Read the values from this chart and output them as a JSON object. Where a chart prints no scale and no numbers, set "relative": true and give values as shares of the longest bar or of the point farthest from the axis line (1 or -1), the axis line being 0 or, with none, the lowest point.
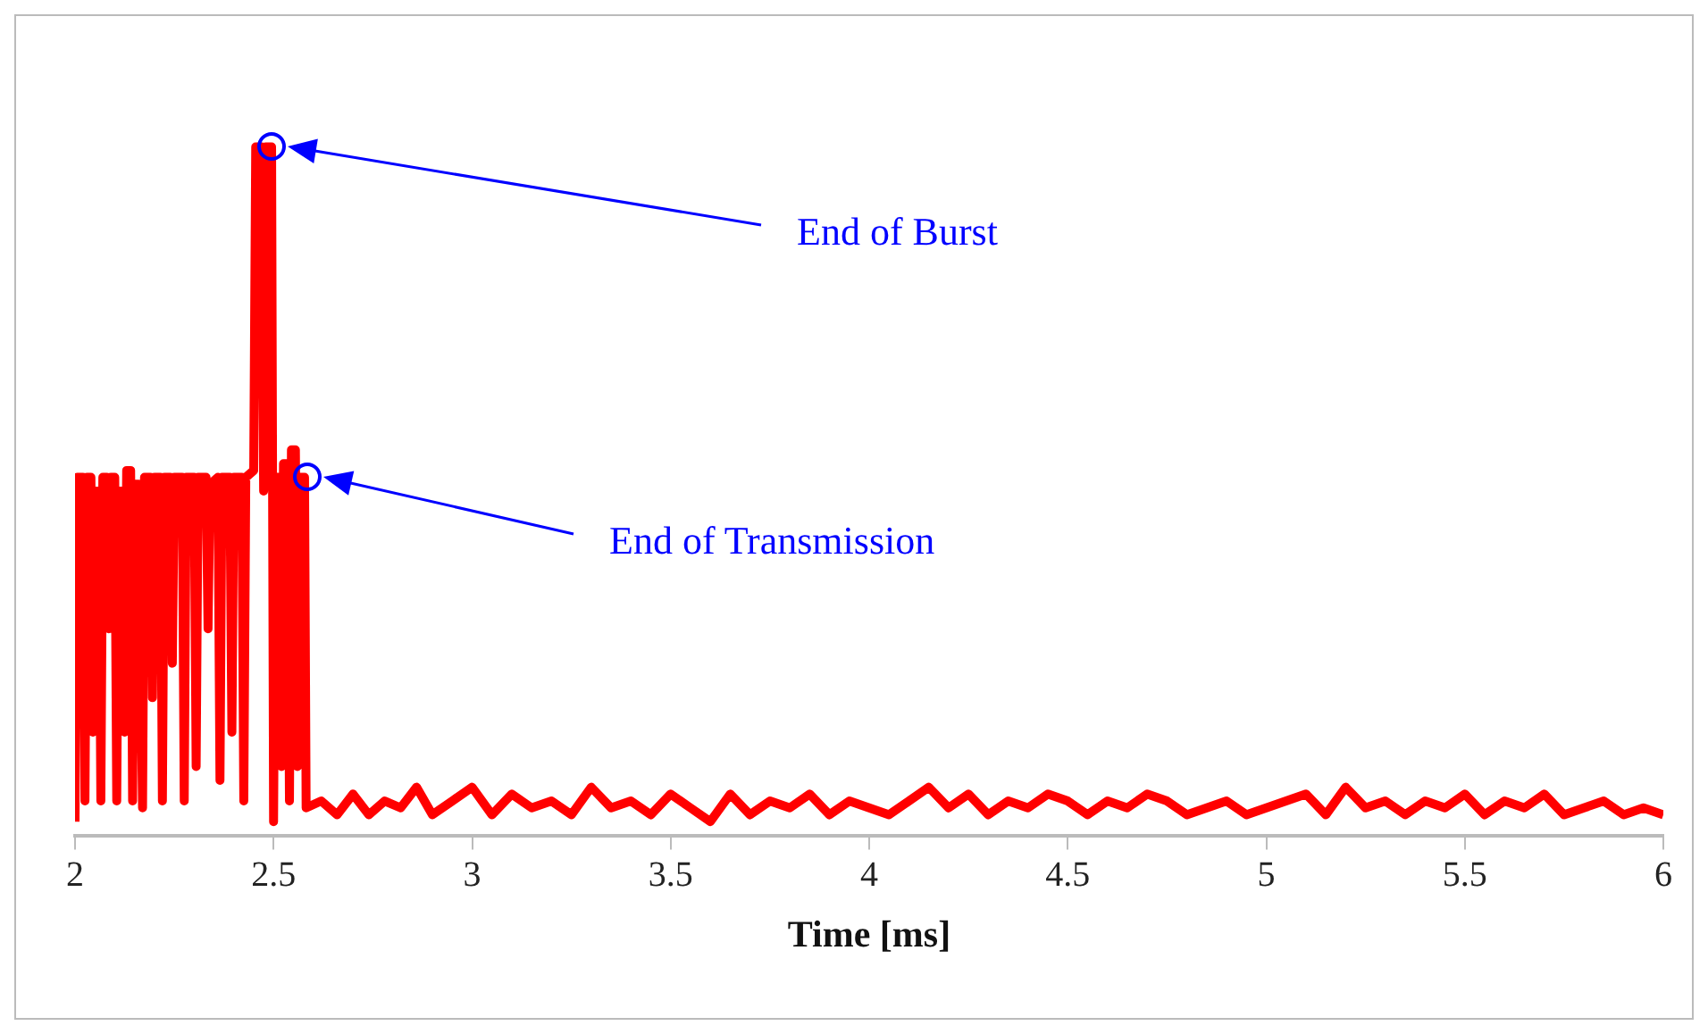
{
  "chart_data": {
    "type": "line",
    "relative": true,
    "xlabel": "Time [ms]",
    "xlim": [
      2,
      6
    ],
    "xticks": [
      2,
      2.5,
      3,
      3.5,
      4,
      4.5,
      5,
      5.5,
      6
    ],
    "grid": false,
    "legend": false,
    "x": [
      2.0,
      2.005,
      2.02,
      2.025,
      2.03,
      2.04,
      2.045,
      2.05,
      2.06,
      2.065,
      2.07,
      2.08,
      2.085,
      2.09,
      2.1,
      2.105,
      2.11,
      2.12,
      2.125,
      2.13,
      2.14,
      2.145,
      2.15,
      2.16,
      2.17,
      2.175,
      2.19,
      2.195,
      2.2,
      2.215,
      2.22,
      2.225,
      2.24,
      2.245,
      2.25,
      2.27,
      2.275,
      2.28,
      2.3,
      2.305,
      2.31,
      2.33,
      2.335,
      2.34,
      2.36,
      2.365,
      2.37,
      2.39,
      2.395,
      2.4,
      2.42,
      2.425,
      2.43,
      2.45,
      2.455,
      2.47,
      2.475,
      2.48,
      2.495,
      2.5,
      2.505,
      2.515,
      2.52,
      2.525,
      2.535,
      2.54,
      2.545,
      2.555,
      2.56,
      2.565,
      2.578,
      2.582,
      2.62,
      2.66,
      2.7,
      2.74,
      2.78,
      2.82,
      2.86,
      2.9,
      2.95,
      3.0,
      3.05,
      3.1,
      3.15,
      3.2,
      3.25,
      3.3,
      3.35,
      3.4,
      3.45,
      3.5,
      3.55,
      3.6,
      3.65,
      3.7,
      3.75,
      3.8,
      3.85,
      3.9,
      3.95,
      4.0,
      4.05,
      4.1,
      4.15,
      4.2,
      4.25,
      4.3,
      4.35,
      4.4,
      4.45,
      4.5,
      4.55,
      4.6,
      4.65,
      4.7,
      4.75,
      4.8,
      4.85,
      4.9,
      4.95,
      5.0,
      5.05,
      5.1,
      5.15,
      5.2,
      5.25,
      5.3,
      5.35,
      5.4,
      5.45,
      5.5,
      5.55,
      5.6,
      5.65,
      5.7,
      5.75,
      5.8,
      5.85,
      5.9,
      5.95,
      6.0
    ],
    "series": [
      {
        "color": "#ff0000",
        "values": [
          0.02,
          0.52,
          0.52,
          0.05,
          0.52,
          0.52,
          0.15,
          0.5,
          0.5,
          0.05,
          0.52,
          0.52,
          0.3,
          0.52,
          0.52,
          0.05,
          0.5,
          0.5,
          0.15,
          0.53,
          0.53,
          0.05,
          0.51,
          0.51,
          0.04,
          0.52,
          0.52,
          0.2,
          0.52,
          0.52,
          0.05,
          0.52,
          0.52,
          0.25,
          0.52,
          0.52,
          0.05,
          0.52,
          0.52,
          0.1,
          0.52,
          0.52,
          0.3,
          0.51,
          0.52,
          0.08,
          0.52,
          0.52,
          0.15,
          0.52,
          0.52,
          0.05,
          0.52,
          0.53,
          1.0,
          1.0,
          0.5,
          1.0,
          1.0,
          0.02,
          0.52,
          0.52,
          0.1,
          0.54,
          0.54,
          0.05,
          0.56,
          0.56,
          0.1,
          0.52,
          0.52,
          0.04,
          0.05,
          0.03,
          0.06,
          0.03,
          0.05,
          0.04,
          0.07,
          0.03,
          0.05,
          0.07,
          0.03,
          0.06,
          0.04,
          0.05,
          0.03,
          0.07,
          0.04,
          0.05,
          0.03,
          0.06,
          0.04,
          0.02,
          0.06,
          0.03,
          0.05,
          0.04,
          0.06,
          0.03,
          0.05,
          0.04,
          0.03,
          0.05,
          0.07,
          0.04,
          0.06,
          0.03,
          0.05,
          0.04,
          0.06,
          0.05,
          0.03,
          0.05,
          0.04,
          0.06,
          0.05,
          0.03,
          0.04,
          0.05,
          0.03,
          0.04,
          0.05,
          0.06,
          0.03,
          0.07,
          0.04,
          0.05,
          0.03,
          0.05,
          0.04,
          0.06,
          0.03,
          0.05,
          0.04,
          0.06,
          0.03,
          0.04,
          0.05,
          0.03,
          0.04,
          0.03
        ]
      }
    ],
    "annotations": [
      "End of Burst",
      "End of Transmission"
    ]
  }
}
